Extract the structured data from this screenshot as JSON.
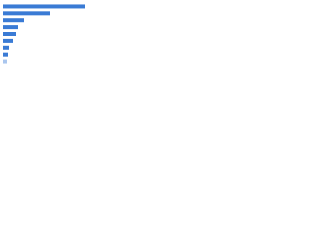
{
  "chart_data": {
    "type": "barh",
    "categories": [
      null,
      null,
      null,
      null,
      null,
      null,
      null,
      null,
      null
    ],
    "values": [
      82,
      47,
      21,
      15,
      13,
      10,
      6,
      5,
      4
    ],
    "colors": [
      "#3a7bd5",
      "#3a7bd5",
      "#3a7bd5",
      "#3a7bd5",
      "#3a7bd5",
      "#3a7bd5",
      "#3a7bd5",
      "#3a7bd5",
      "#aac6ee"
    ],
    "xlim": [
      0,
      94
    ]
  }
}
